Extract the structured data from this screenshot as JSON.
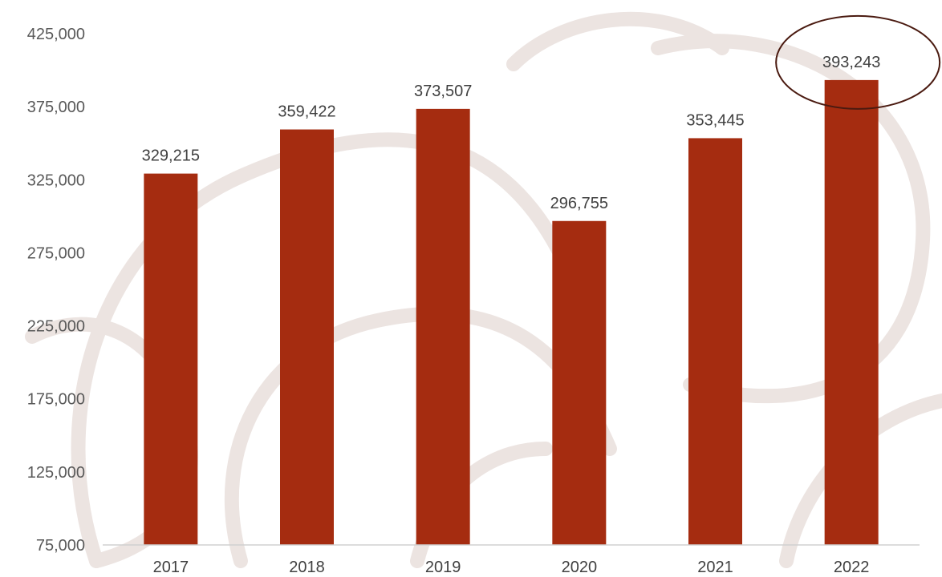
{
  "colors": {
    "bar": "#a52c10",
    "highlight_outline": "#4a1a10",
    "axis": "#d0d0d0",
    "watermark": "#ece4e1"
  },
  "chart_data": {
    "type": "bar",
    "categories": [
      "2017",
      "2018",
      "2019",
      "2020",
      "2021",
      "2022"
    ],
    "values": [
      329215,
      359422,
      373507,
      296755,
      353445,
      393243
    ],
    "data_labels": [
      "329,215",
      "359,422",
      "373,507",
      "296,755",
      "353,445",
      "393,243"
    ],
    "ylim": [
      75000,
      425000
    ],
    "y_ticks": [
      75000,
      125000,
      175000,
      225000,
      275000,
      325000,
      375000,
      425000
    ],
    "y_tick_labels": [
      "75,000",
      "125,000",
      "175,000",
      "225,000",
      "275,000",
      "325,000",
      "375,000",
      "425,000"
    ],
    "highlighted_category": "2022",
    "grid": false,
    "legend": "none"
  }
}
